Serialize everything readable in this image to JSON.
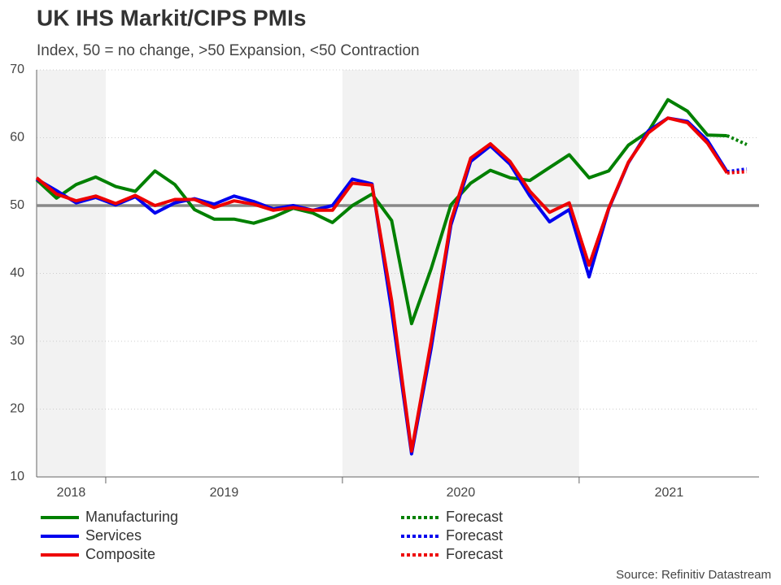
{
  "chart_data": {
    "type": "line",
    "title": "UK IHS Markit/CIPS PMIs",
    "subtitle": "Index, 50 = no change, >50 Expansion, <50 Contraction",
    "source": "Source: Refinitiv Datastream",
    "x": [
      2018.708,
      2018.792,
      2018.875,
      2018.958,
      2019.042,
      2019.125,
      2019.208,
      2019.292,
      2019.375,
      2019.458,
      2019.542,
      2019.625,
      2019.708,
      2019.792,
      2019.875,
      2019.958,
      2020.042,
      2020.125,
      2020.208,
      2020.292,
      2020.375,
      2020.458,
      2020.542,
      2020.625,
      2020.708,
      2020.792,
      2020.875,
      2020.958,
      2021.042,
      2021.125,
      2021.208,
      2021.292,
      2021.375,
      2021.458,
      2021.542,
      2021.625,
      2021.708
    ],
    "xlim": [
      2018.708,
      2021.76
    ],
    "xticks": [
      2019,
      2020,
      2021
    ],
    "year_labels": [
      {
        "value": 2018,
        "label": "2018"
      },
      {
        "value": 2019,
        "label": "2019"
      },
      {
        "value": 2020,
        "label": "2020"
      },
      {
        "value": 2021,
        "label": "2021"
      }
    ],
    "shaded_years": [
      2018,
      2020
    ],
    "ylim": [
      10,
      70
    ],
    "yticks": [
      10,
      20,
      30,
      40,
      50,
      60,
      70
    ],
    "grid": true,
    "reference_line": 50,
    "series": [
      {
        "name": "Manufacturing",
        "color": "#008000",
        "style": "solid",
        "values": [
          53.8,
          51.1,
          53.1,
          54.2,
          52.8,
          52.1,
          55.1,
          53.1,
          49.4,
          48.0,
          48.0,
          47.4,
          48.3,
          49.6,
          48.9,
          47.5,
          50.0,
          51.7,
          47.8,
          32.6,
          40.7,
          50.1,
          53.3,
          55.2,
          54.1,
          53.7,
          55.6,
          57.5,
          54.1,
          55.1,
          58.9,
          60.9,
          65.6,
          63.9,
          60.4,
          60.3,
          null
        ]
      },
      {
        "name": "Services",
        "color": "#0000ee",
        "style": "solid",
        "values": [
          53.9,
          52.2,
          50.4,
          51.2,
          50.1,
          51.3,
          48.9,
          50.4,
          51.0,
          50.2,
          51.4,
          50.6,
          49.5,
          50.0,
          49.3,
          50.0,
          53.9,
          53.2,
          34.5,
          13.4,
          29.0,
          47.1,
          56.5,
          58.8,
          56.1,
          51.4,
          47.6,
          49.4,
          39.5,
          49.5,
          56.3,
          61.0,
          62.9,
          62.4,
          59.6,
          55.0,
          null
        ]
      },
      {
        "name": "Composite",
        "color": "#ee0000",
        "style": "solid",
        "values": [
          54.1,
          51.7,
          50.7,
          51.4,
          50.3,
          51.5,
          50.0,
          50.9,
          50.9,
          49.7,
          50.7,
          50.2,
          49.3,
          49.7,
          49.3,
          49.3,
          53.3,
          53.0,
          36.0,
          13.8,
          30.0,
          47.7,
          57.0,
          59.1,
          56.5,
          52.1,
          49.0,
          50.4,
          41.2,
          49.6,
          56.4,
          60.7,
          62.9,
          62.2,
          59.2,
          54.8,
          null
        ]
      },
      {
        "name": "Forecast",
        "color": "#008000",
        "style": "dotted",
        "values": [
          null,
          null,
          null,
          null,
          null,
          null,
          null,
          null,
          null,
          null,
          null,
          null,
          null,
          null,
          null,
          null,
          null,
          null,
          null,
          null,
          null,
          null,
          null,
          null,
          null,
          null,
          null,
          null,
          null,
          null,
          null,
          null,
          null,
          null,
          null,
          60.3,
          59.0
        ]
      },
      {
        "name": "Forecast",
        "color": "#0000ee",
        "style": "dotted",
        "values": [
          null,
          null,
          null,
          null,
          null,
          null,
          null,
          null,
          null,
          null,
          null,
          null,
          null,
          null,
          null,
          null,
          null,
          null,
          null,
          null,
          null,
          null,
          null,
          null,
          null,
          null,
          null,
          null,
          null,
          null,
          null,
          null,
          null,
          null,
          null,
          55.0,
          55.4
        ]
      },
      {
        "name": "Forecast",
        "color": "#ee0000",
        "style": "dotted",
        "values": [
          null,
          null,
          null,
          null,
          null,
          null,
          null,
          null,
          null,
          null,
          null,
          null,
          null,
          null,
          null,
          null,
          null,
          null,
          null,
          null,
          null,
          null,
          null,
          null,
          null,
          null,
          null,
          null,
          null,
          null,
          null,
          null,
          null,
          null,
          null,
          54.8,
          55.0
        ]
      }
    ]
  }
}
